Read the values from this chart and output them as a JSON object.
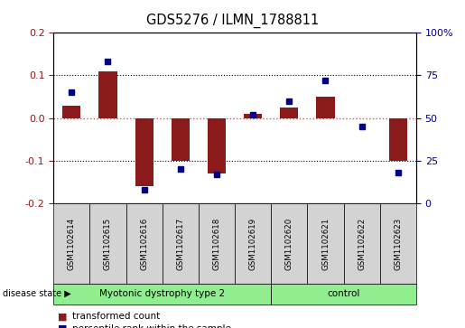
{
  "title": "GDS5276 / ILMN_1788811",
  "samples": [
    "GSM1102614",
    "GSM1102615",
    "GSM1102616",
    "GSM1102617",
    "GSM1102618",
    "GSM1102619",
    "GSM1102620",
    "GSM1102621",
    "GSM1102622",
    "GSM1102623"
  ],
  "transformed_count": [
    0.03,
    0.11,
    -0.16,
    -0.1,
    -0.13,
    0.01,
    0.025,
    0.05,
    0.0,
    -0.1
  ],
  "percentile_rank": [
    65,
    83,
    8,
    20,
    17,
    52,
    60,
    72,
    45,
    18
  ],
  "groups": [
    {
      "label": "Myotonic dystrophy type 2",
      "start": 0,
      "end": 6,
      "color": "#90ee90"
    },
    {
      "label": "control",
      "start": 6,
      "end": 10,
      "color": "#90ee90"
    }
  ],
  "disease_state_label": "disease state",
  "ylim_left": [
    -0.2,
    0.2
  ],
  "ylim_right": [
    0,
    100
  ],
  "yticks_left": [
    -0.2,
    -0.1,
    0.0,
    0.1,
    0.2
  ],
  "yticks_right": [
    0,
    25,
    50,
    75,
    100
  ],
  "ytick_labels_right": [
    "0",
    "25",
    "50",
    "75",
    "100%"
  ],
  "bar_color": "#8B1A1A",
  "dot_color": "#00008B",
  "zero_line_color": "#FF4444",
  "grid_color": "#000000",
  "bg_color": "#ffffff",
  "plot_bg": "#ffffff",
  "label_box_color": "#d3d3d3",
  "bar_width": 0.5
}
